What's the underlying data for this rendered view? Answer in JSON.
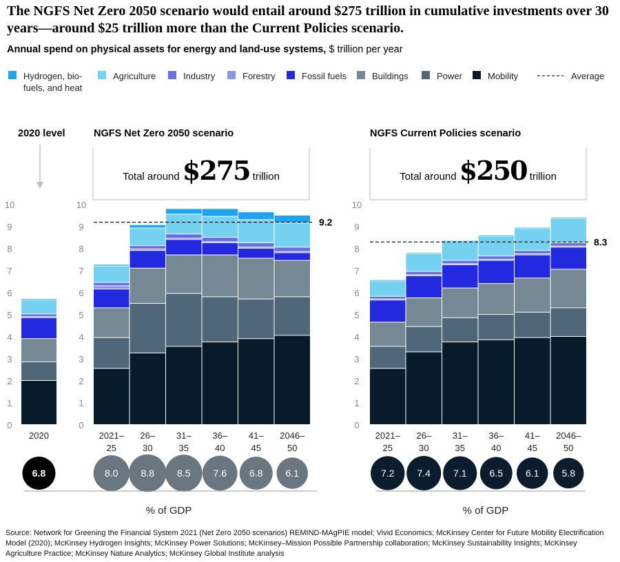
{
  "title": "The NGFS Net Zero 2050 scenario would entail around $275 trillion in cumulative investments over 30 years—around $25 trillion more than the Current Policies scenario.",
  "subtitle_bold": "Annual spend on physical assets for energy and land-use systems,",
  "subtitle_unit": " $ trillion per year",
  "legend": [
    {
      "label": "Hydrogen, bio-",
      "label2": "fuels, and heat",
      "color": "#1ea4ef"
    },
    {
      "label": "Agriculture",
      "color": "#74d2f0"
    },
    {
      "label": "Industry",
      "color": "#6670e4"
    },
    {
      "label": "Forestry",
      "color": "#8b95ee"
    },
    {
      "label": "Fossil fuels",
      "color": "#2229de"
    },
    {
      "label": "Buildings",
      "color": "#768894"
    },
    {
      "label": "Power",
      "color": "#50677a"
    },
    {
      "label": "Mobility",
      "color": "#081b2b"
    }
  ],
  "legend_average": "Average",
  "chart_data": [
    {
      "type": "bar",
      "stacked": true,
      "title": "2020 level",
      "categories": [
        [
          "2020"
        ]
      ],
      "ylim": [
        0,
        10
      ],
      "yticks": [
        "0",
        "1",
        "2",
        "3",
        "4",
        "5",
        "6",
        "7",
        "8",
        "9",
        "10"
      ],
      "series": [
        {
          "name": "Mobility",
          "values": [
            2.0
          ]
        },
        {
          "name": "Power",
          "values": [
            0.85
          ]
        },
        {
          "name": "Buildings",
          "values": [
            1.05
          ]
        },
        {
          "name": "Fossil fuels",
          "values": [
            0.95
          ]
        },
        {
          "name": "Forestry",
          "values": [
            0.05
          ]
        },
        {
          "name": "Industry",
          "values": [
            0.12
          ]
        },
        {
          "name": "Agriculture",
          "values": [
            0.65
          ]
        },
        {
          "name": "Hydrogen, bio-fuels, and heat",
          "values": [
            0.05
          ]
        }
      ],
      "gdp_percent": [
        "6.8"
      ],
      "gdp_color": "#000000"
    },
    {
      "type": "bar",
      "stacked": true,
      "title": "NGFS Net Zero 2050 scenario",
      "total_prefix": "Total around",
      "total_value": "$275",
      "total_suffix": "trillion",
      "categories": [
        [
          "2021–",
          "25"
        ],
        [
          "26–",
          "30"
        ],
        [
          "31–",
          "35"
        ],
        [
          "36–",
          "40"
        ],
        [
          "41–",
          "45"
        ],
        [
          "2046–",
          "50"
        ]
      ],
      "ylim": [
        0,
        10
      ],
      "yticks": [
        "0",
        "1",
        "2",
        "3",
        "4",
        "5",
        "6",
        "7",
        "8",
        "9",
        "10"
      ],
      "series": [
        {
          "name": "Mobility",
          "values": [
            2.55,
            3.25,
            3.55,
            3.75,
            3.9,
            4.05
          ]
        },
        {
          "name": "Power",
          "values": [
            1.4,
            2.25,
            2.4,
            2.05,
            1.8,
            1.75
          ]
        },
        {
          "name": "Buildings",
          "values": [
            1.35,
            1.6,
            1.75,
            1.9,
            1.85,
            1.65
          ]
        },
        {
          "name": "Fossil fuels",
          "values": [
            0.85,
            0.8,
            0.7,
            0.55,
            0.45,
            0.35
          ]
        },
        {
          "name": "Forestry",
          "values": [
            0.15,
            0.07,
            0.05,
            0.05,
            0.05,
            0.05
          ]
        },
        {
          "name": "Industry",
          "values": [
            0.15,
            0.15,
            0.2,
            0.2,
            0.2,
            0.2
          ]
        },
        {
          "name": "Agriculture",
          "values": [
            0.75,
            0.8,
            0.9,
            0.95,
            1.05,
            1.1
          ]
        },
        {
          "name": "Hydrogen, bio-fuels, and heat",
          "values": [
            0.07,
            0.15,
            0.25,
            0.35,
            0.35,
            0.35
          ]
        }
      ],
      "average": 9.2,
      "average_label": "9.2",
      "gdp_percent": [
        "8.0",
        "8.8",
        "8.5",
        "7.6",
        "6.8",
        "6.1"
      ],
      "gdp_color": "#6a7680",
      "gdp_label": "% of GDP"
    },
    {
      "type": "bar",
      "stacked": true,
      "title": "NGFS Current Policies scenario",
      "total_prefix": "Total around",
      "total_value": "$250",
      "total_suffix": "trillion",
      "categories": [
        [
          "2021–",
          "25"
        ],
        [
          "26–",
          "30"
        ],
        [
          "31–",
          "35"
        ],
        [
          "36–",
          "40"
        ],
        [
          "41–",
          "45"
        ],
        [
          "2046–",
          "50"
        ]
      ],
      "ylim": [
        0,
        10
      ],
      "yticks": [
        "0",
        "1",
        "2",
        "3",
        "4",
        "5",
        "6",
        "7",
        "8",
        "9",
        "10"
      ],
      "series": [
        {
          "name": "Mobility",
          "values": [
            2.55,
            3.3,
            3.75,
            3.85,
            3.95,
            4.0
          ]
        },
        {
          "name": "Power",
          "values": [
            1.0,
            1.15,
            1.1,
            1.15,
            1.15,
            1.3
          ]
        },
        {
          "name": "Buildings",
          "values": [
            1.1,
            1.3,
            1.35,
            1.4,
            1.55,
            1.75
          ]
        },
        {
          "name": "Fossil fuels",
          "values": [
            1.0,
            1.0,
            1.05,
            1.05,
            1.05,
            1.0
          ]
        },
        {
          "name": "Forestry",
          "values": [
            0.05,
            0.05,
            0.05,
            0.05,
            0.05,
            0.05
          ]
        },
        {
          "name": "Industry",
          "values": [
            0.12,
            0.15,
            0.15,
            0.15,
            0.15,
            0.15
          ]
        },
        {
          "name": "Agriculture",
          "values": [
            0.7,
            0.8,
            0.85,
            0.9,
            1.0,
            1.1
          ]
        },
        {
          "name": "Hydrogen, bio-fuels, and heat",
          "values": [
            0.05,
            0.05,
            0.05,
            0.05,
            0.05,
            0.05
          ]
        }
      ],
      "average": 8.3,
      "average_label": "8.3",
      "gdp_percent": [
        "7.2",
        "7.4",
        "7.1",
        "6.5",
        "6.1",
        "5.8"
      ],
      "gdp_color": "#0b1d2c",
      "gdp_label": "% of GDP"
    }
  ],
  "source": "Source: Network for Greening the Financial System 2021 (Net Zero 2050 scenarios) REMIND-MAgPIE model; Vivid Economics; McKinsey Center for Future Mobility Electrification Model (2020); McKinsey Hydrogen Insights; McKinsey Power Solutions; McKinsey–Mission Possible Partnership collaboration; McKinsey Sustainability Insights; McKinsey Agriculture Practice; McKinsey Nature Analytics; McKinsey Global Institute analysis"
}
